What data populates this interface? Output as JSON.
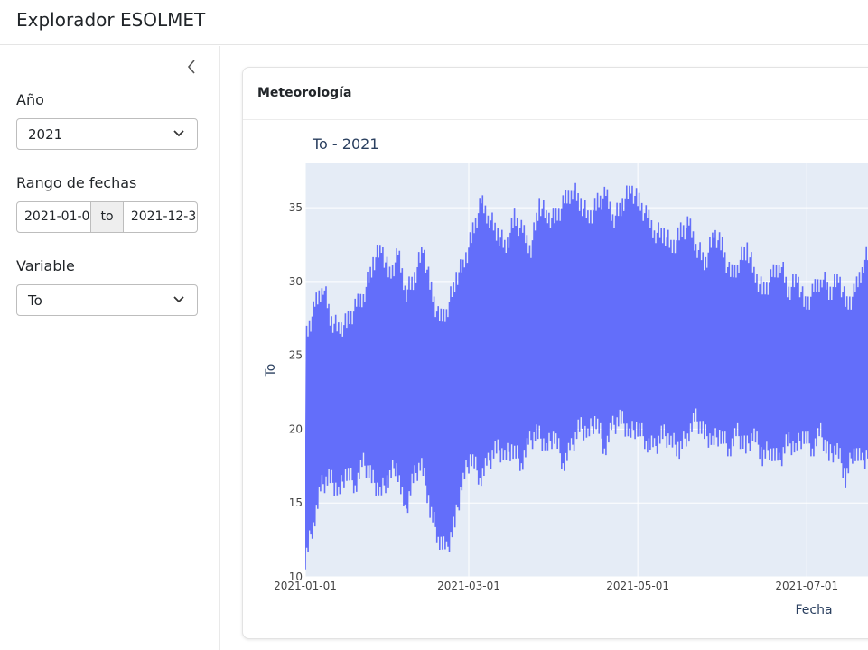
{
  "app": {
    "title": "Explorador ESOLMET"
  },
  "sidebar": {
    "year": {
      "label": "Año",
      "value": "2021"
    },
    "date_range": {
      "label": "Rango de fechas",
      "start": "2021-01-0",
      "separator": "to",
      "end": "2021-12-3"
    },
    "variable": {
      "label": "Variable",
      "value": "To"
    },
    "collapse_icon": "chevron-left-icon"
  },
  "card": {
    "title": "Meteorología"
  },
  "chart_data": {
    "type": "line",
    "title": "To - 2021",
    "xlabel": "Fecha",
    "ylabel": "To",
    "ylim": [
      10,
      38
    ],
    "x_ticks": [
      "2021-01-01",
      "2021-03-01",
      "2021-05-01",
      "2021-07-01"
    ],
    "y_ticks": [
      10,
      15,
      20,
      25,
      30,
      35
    ],
    "line_color": "#636efa",
    "plot_bg": "#e5ecf6",
    "x": [
      "2021-01-01",
      "2021-01-04",
      "2021-01-07",
      "2021-01-10",
      "2021-01-13",
      "2021-01-16",
      "2021-01-19",
      "2021-01-22",
      "2021-01-25",
      "2021-01-28",
      "2021-01-31",
      "2021-02-03",
      "2021-02-06",
      "2021-02-09",
      "2021-02-12",
      "2021-02-15",
      "2021-02-18",
      "2021-02-21",
      "2021-02-24",
      "2021-02-27",
      "2021-03-02",
      "2021-03-05",
      "2021-03-08",
      "2021-03-11",
      "2021-03-14",
      "2021-03-17",
      "2021-03-20",
      "2021-03-23",
      "2021-03-26",
      "2021-03-29",
      "2021-04-01",
      "2021-04-04",
      "2021-04-07",
      "2021-04-10",
      "2021-04-13",
      "2021-04-16",
      "2021-04-19",
      "2021-04-22",
      "2021-04-25",
      "2021-04-28",
      "2021-05-01",
      "2021-05-04",
      "2021-05-07",
      "2021-05-10",
      "2021-05-13",
      "2021-05-16",
      "2021-05-19",
      "2021-05-22",
      "2021-05-25",
      "2021-05-28",
      "2021-05-31",
      "2021-06-03",
      "2021-06-06",
      "2021-06-09",
      "2021-06-12",
      "2021-06-15",
      "2021-06-18",
      "2021-06-21",
      "2021-06-24",
      "2021-06-27",
      "2021-06-30",
      "2021-07-03",
      "2021-07-06",
      "2021-07-09",
      "2021-07-12",
      "2021-07-15",
      "2021-07-18",
      "2021-07-21",
      "2021-07-24"
    ],
    "min": [
      10.5,
      13,
      15.5,
      16,
      15,
      16.5,
      15.5,
      17,
      16,
      15,
      16,
      17,
      13.5,
      16,
      17,
      14,
      12,
      11,
      13,
      16,
      17.5,
      16,
      17,
      18,
      17.5,
      18,
      17,
      18.5,
      19,
      18,
      19,
      17,
      18,
      19.5,
      19,
      20,
      18,
      19.5,
      20,
      19,
      19.5,
      18.5,
      18,
      19,
      18.5,
      18,
      19,
      20,
      19,
      18.5,
      19,
      18,
      19,
      18,
      19,
      17.5,
      18,
      17,
      18.5,
      18,
      19,
      18,
      19,
      17.5,
      18,
      16,
      18,
      17,
      18
    ],
    "max": [
      27,
      29,
      30.5,
      28,
      27.5,
      28,
      29,
      30,
      32,
      33,
      31,
      32.5,
      30,
      31,
      33,
      30,
      28,
      29,
      31,
      32,
      34,
      36,
      35,
      34,
      33,
      35,
      34,
      33,
      36,
      35,
      35,
      36,
      37,
      36,
      35,
      36,
      36.5,
      35,
      36,
      37,
      36,
      35,
      34,
      34,
      33,
      34,
      34.5,
      33,
      32,
      34,
      33,
      31,
      32,
      33,
      31,
      30,
      31,
      32,
      30,
      31,
      29,
      30,
      31,
      30,
      31,
      29,
      30,
      32,
      33
    ]
  }
}
